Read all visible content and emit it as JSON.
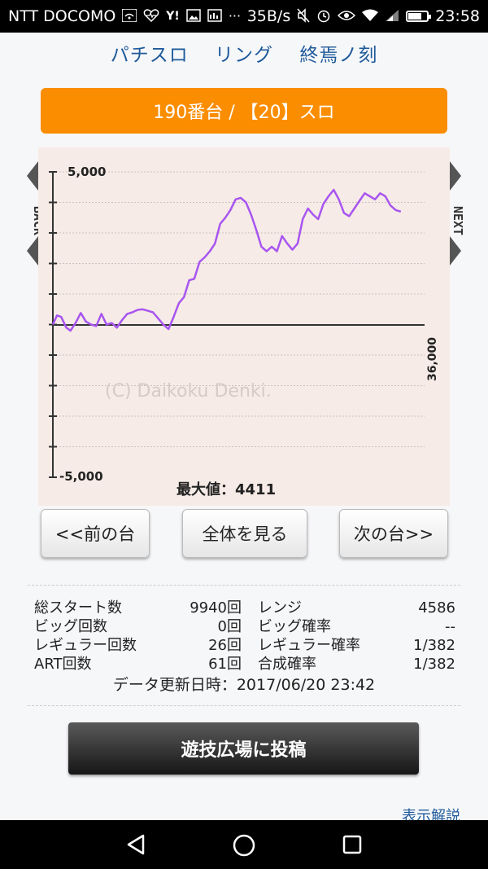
{
  "status_bar": {
    "carrier": "NTT DOCOMO",
    "speed": "35B/s",
    "time": "23:58",
    "icons": [
      "wifi-icon",
      "heart-icon",
      "yahoo-icon",
      "image-icon",
      "gallery-icon",
      "more-icon",
      "mute-icon",
      "alarm-icon",
      "eye-icon",
      "wifi-signal-icon",
      "cell-signal-icon",
      "battery-icon"
    ]
  },
  "header": {
    "items": [
      "パチスロ",
      "リング",
      "終焉ノ刻"
    ]
  },
  "machine": {
    "label": "190番台 / 【20】スロ"
  },
  "chart_side": {
    "back": "BACK",
    "next": "NEXT"
  },
  "chart_data": {
    "type": "line",
    "y_top_label": "5,000",
    "y_bottom_label": "-5,000",
    "x_end_label": "36,000",
    "watermark": "(C) Daikoku Denki.",
    "ylim": [
      -5000,
      5000
    ],
    "xlim": [
      0,
      36000
    ],
    "max_label": "最大値：4411",
    "color": "#a855f0",
    "series": [
      {
        "x": [
          0,
          400,
          800,
          1300,
          1700,
          2200,
          2700,
          3200,
          3700,
          4200,
          4700,
          5200,
          5700,
          6200,
          6700,
          7200,
          7700,
          8200,
          8700,
          9200,
          9700,
          10200,
          10700,
          11200,
          11700,
          12200,
          12700,
          13200,
          13700,
          14200,
          14700,
          15200,
          15700,
          16200,
          16700,
          17200,
          17700,
          18200,
          18700,
          19200,
          19700,
          20200,
          20700,
          21200,
          21700,
          22200,
          22700,
          23200,
          23700,
          24200,
          24700,
          25200,
          25700,
          26200,
          26700,
          27200,
          27700,
          28200,
          28700,
          29200,
          29700,
          30200,
          30700,
          31200,
          31700,
          32200,
          32700,
          33200,
          33700
        ],
        "y": [
          0,
          300,
          250,
          -100,
          -200,
          50,
          380,
          100,
          0,
          -50,
          350,
          0,
          50,
          -100,
          150,
          350,
          400,
          480,
          500,
          450,
          400,
          200,
          0,
          -150,
          250,
          700,
          900,
          1450,
          1500,
          2050,
          2200,
          2400,
          2650,
          3300,
          3500,
          3750,
          4100,
          4150,
          4000,
          3600,
          3100,
          2550,
          2400,
          2550,
          2400,
          2900,
          2650,
          2450,
          2650,
          3450,
          3800,
          3600,
          3450,
          3950,
          4200,
          4411,
          4100,
          3650,
          3550,
          3800,
          4050,
          4300,
          4200,
          4100,
          4300,
          4200,
          3900,
          3750,
          3700
        ]
      }
    ]
  },
  "nav": {
    "prev": "<<前の台",
    "all": "全体を見る",
    "next": "次の台>>"
  },
  "stats": {
    "rows": [
      {
        "label1": "総スタート数",
        "value1": "9940回",
        "label2": "レンジ",
        "value2": "4586"
      },
      {
        "label1": "ビッグ回数",
        "value1": "0回",
        "label2": "ビッグ確率",
        "value2": "--"
      },
      {
        "label1": "レギュラー回数",
        "value1": "26回",
        "label2": "レギュラー確率",
        "value2": "1/382"
      },
      {
        "label1": "ART回数",
        "value1": "61回",
        "label2": "合成確率",
        "value2": "1/382"
      }
    ],
    "updated": "データ更新日時：2017/06/20 23:42"
  },
  "post_button": "遊技広場に投稿",
  "help_link": "表示解説",
  "android_nav": [
    "back-icon",
    "home-icon",
    "recents-icon"
  ]
}
